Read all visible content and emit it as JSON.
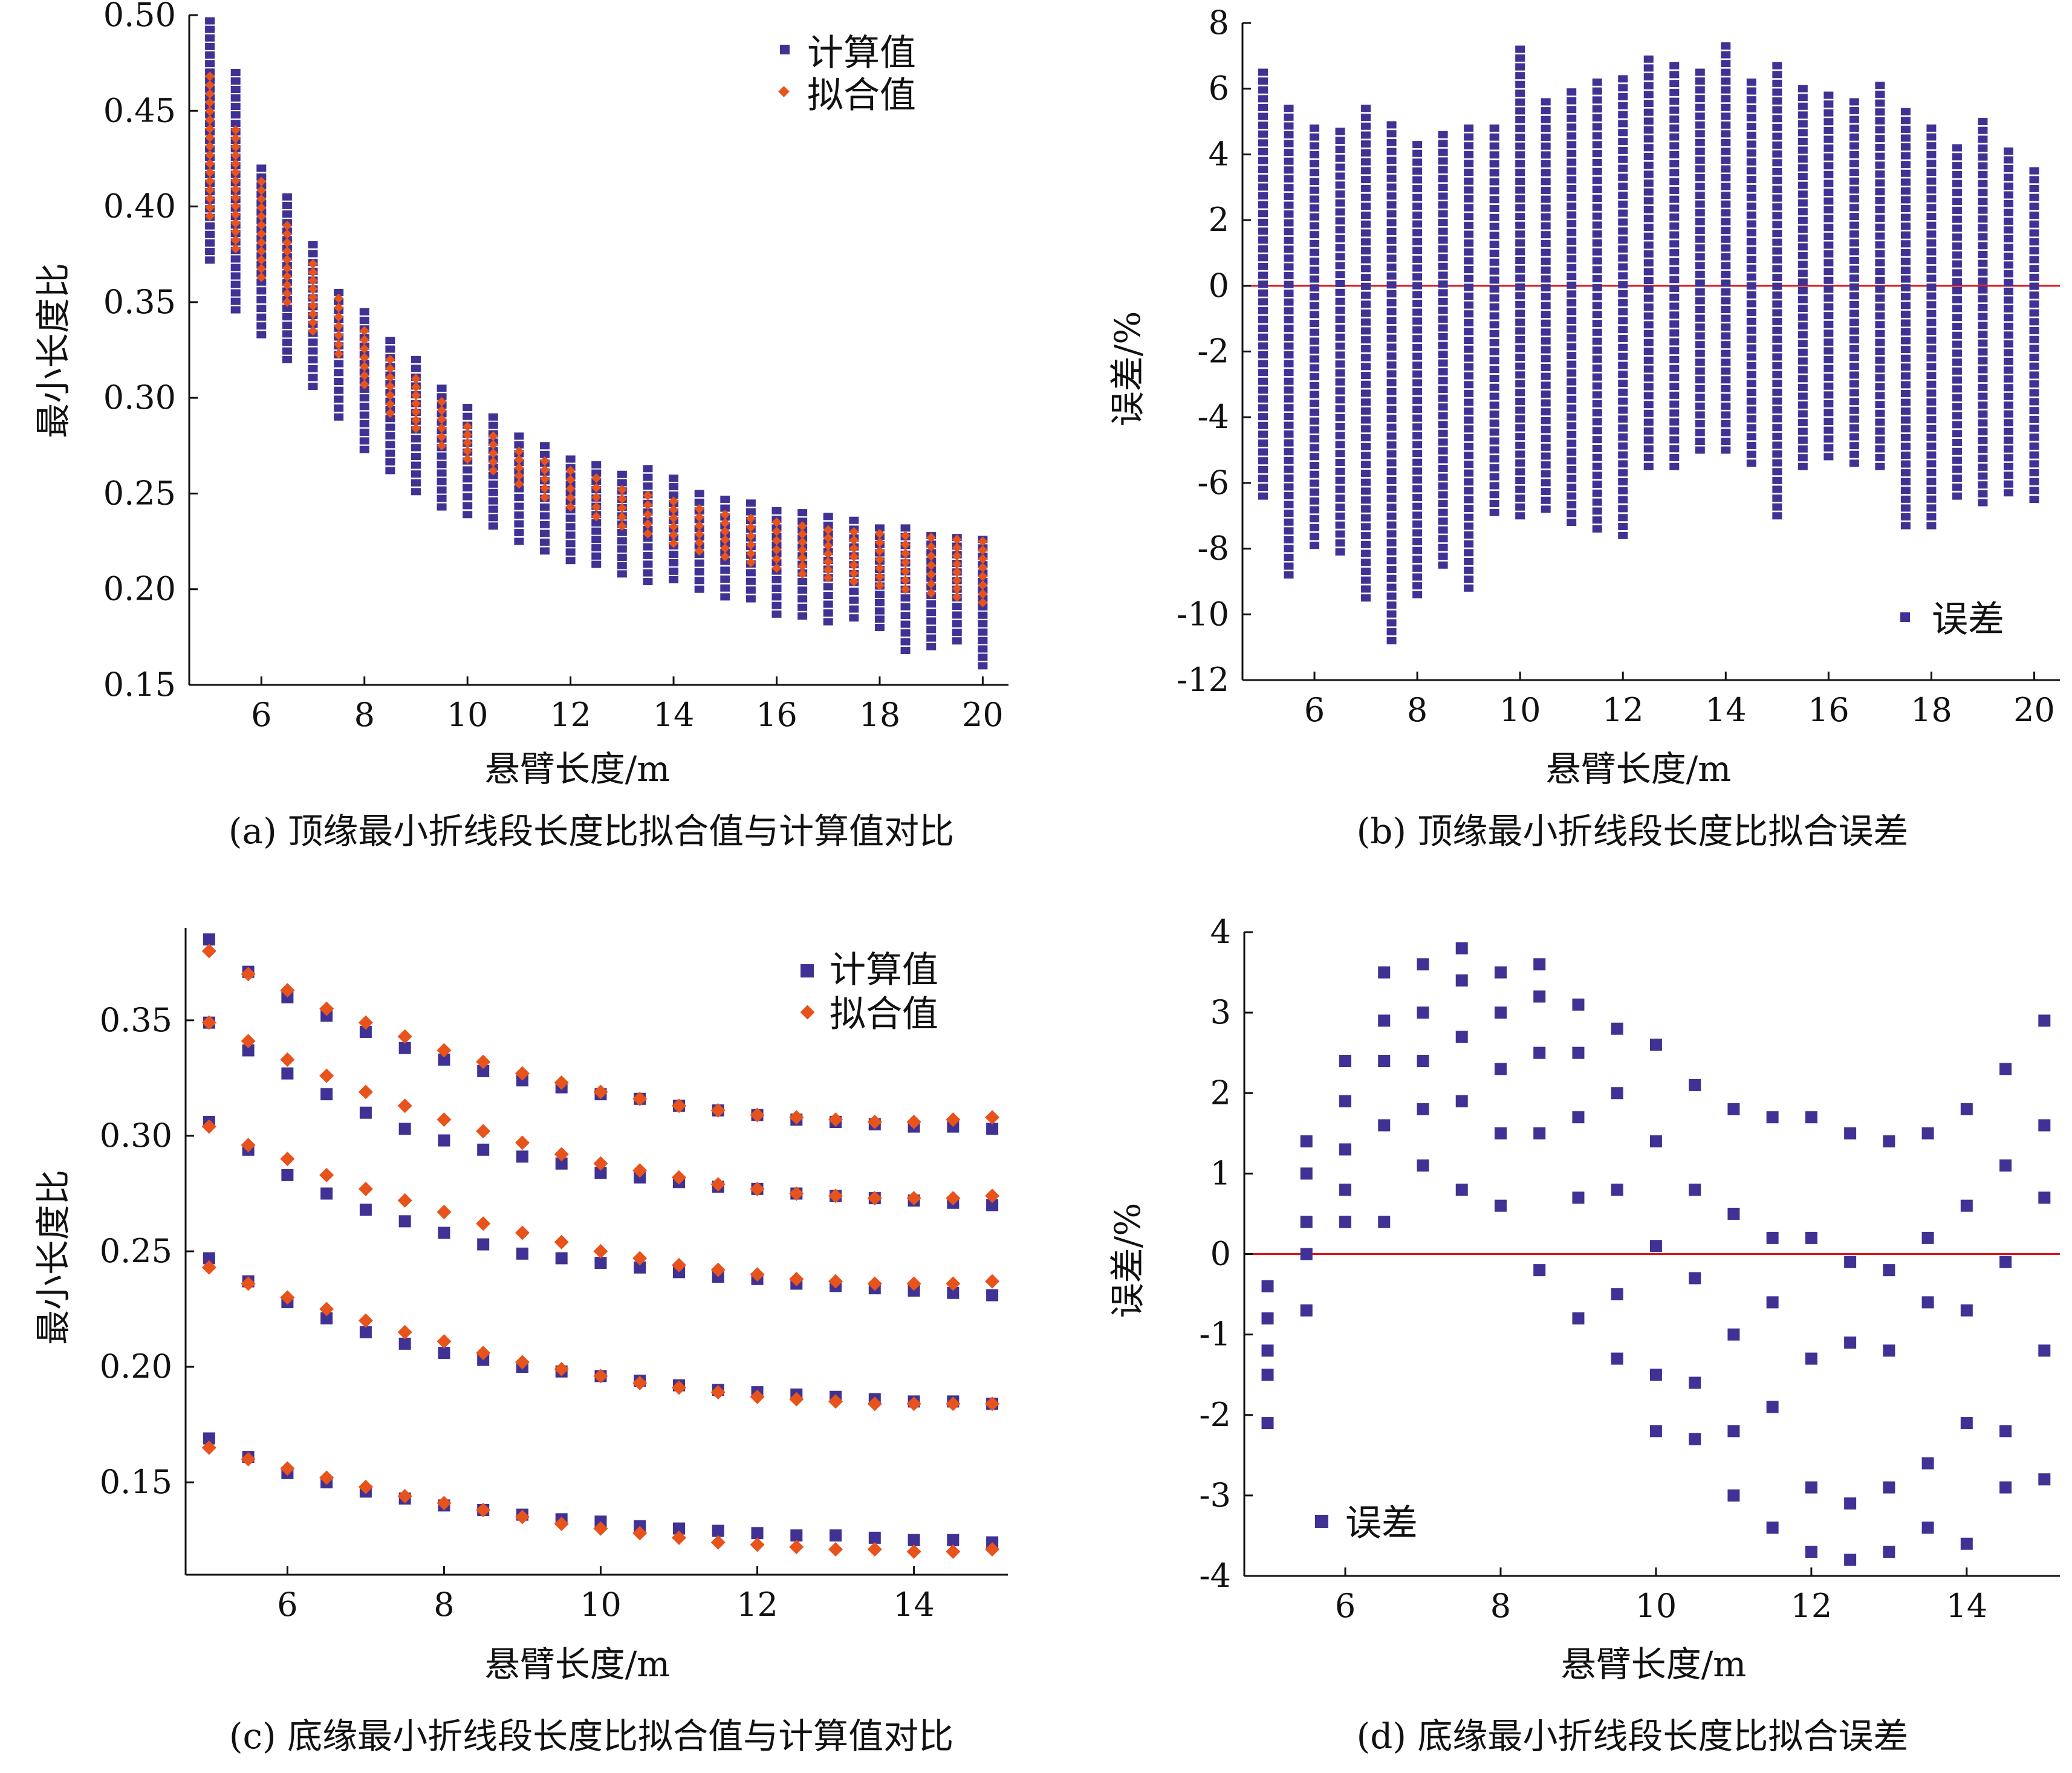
{
  "colors": {
    "computed": "#3f3294",
    "fitted": "#e8521b",
    "error": "#3f3294",
    "zero_line": "#e0141b",
    "axis": "#111111"
  },
  "chart_data": [
    {
      "id": "a",
      "type": "scatter",
      "caption": "(a) 顶缘最小折线段长度比拟合值与计算值对比",
      "xlabel": "悬臂长度/m",
      "ylabel": "最小长度比",
      "xlim": [
        4.6,
        20.5
      ],
      "ylim": [
        0.15,
        0.5
      ],
      "xticks": [
        6,
        8,
        10,
        12,
        14,
        16,
        18,
        20
      ],
      "xtick_labels": [
        "6",
        "8",
        "10",
        "12",
        "14",
        "16",
        "18",
        "20"
      ],
      "yticks": [
        0.15,
        0.2,
        0.25,
        0.3,
        0.35,
        0.4,
        0.45,
        0.5
      ],
      "ytick_labels": [
        "0.15",
        "0.20",
        "0.25",
        "0.30",
        "0.35",
        "0.40",
        "0.45",
        "0.50"
      ],
      "legend": [
        "计算值",
        "拟合值"
      ],
      "legend_position": "top-right",
      "series": [
        {
          "name": "计算值",
          "marker": "square",
          "x": [
            5,
            5.5,
            6,
            6.5,
            7,
            7.5,
            8,
            8.5,
            9,
            9.5,
            10,
            10.5,
            11,
            11.5,
            12,
            12.5,
            13,
            13.5,
            14,
            14.5,
            15,
            15.5,
            16,
            16.5,
            17,
            17.5,
            18,
            18.5,
            19,
            19.5,
            20
          ],
          "y_min": [
            0.372,
            0.346,
            0.333,
            0.32,
            0.306,
            0.29,
            0.273,
            0.262,
            0.251,
            0.243,
            0.239,
            0.233,
            0.225,
            0.22,
            0.215,
            0.213,
            0.208,
            0.204,
            0.205,
            0.2,
            0.196,
            0.195,
            0.187,
            0.186,
            0.183,
            0.185,
            0.18,
            0.168,
            0.17,
            0.173,
            0.16
          ],
          "y_max": [
            0.497,
            0.47,
            0.42,
            0.405,
            0.38,
            0.355,
            0.345,
            0.33,
            0.32,
            0.305,
            0.295,
            0.29,
            0.28,
            0.275,
            0.268,
            0.265,
            0.26,
            0.263,
            0.258,
            0.25,
            0.247,
            0.245,
            0.241,
            0.24,
            0.238,
            0.236,
            0.232,
            0.232,
            0.228,
            0.227,
            0.226
          ]
        },
        {
          "name": "拟合值",
          "marker": "diamond",
          "x": [
            5,
            5.5,
            6,
            6.5,
            7,
            7.5,
            8,
            8.5,
            9,
            9.5,
            10,
            10.5,
            11,
            11.5,
            12,
            12.5,
            13,
            13.5,
            14,
            14.5,
            15,
            15.5,
            16,
            16.5,
            17,
            17.5,
            18,
            18.5,
            19,
            19.5,
            20
          ],
          "y_min": [
            0.395,
            0.378,
            0.363,
            0.35,
            0.335,
            0.323,
            0.307,
            0.292,
            0.284,
            0.275,
            0.268,
            0.262,
            0.255,
            0.248,
            0.243,
            0.238,
            0.233,
            0.229,
            0.224,
            0.22,
            0.217,
            0.214,
            0.211,
            0.208,
            0.206,
            0.204,
            0.202,
            0.2,
            0.198,
            0.196,
            0.193
          ],
          "y_max": [
            0.468,
            0.44,
            0.413,
            0.39,
            0.37,
            0.352,
            0.335,
            0.32,
            0.31,
            0.298,
            0.285,
            0.28,
            0.272,
            0.267,
            0.262,
            0.258,
            0.252,
            0.249,
            0.246,
            0.242,
            0.239,
            0.237,
            0.235,
            0.233,
            0.231,
            0.23,
            0.229,
            0.228,
            0.227,
            0.226,
            0.225
          ]
        }
      ]
    },
    {
      "id": "b",
      "type": "scatter",
      "caption": "(b) 顶缘最小折线段长度比拟合误差",
      "xlabel": "悬臂长度/m",
      "ylabel": "误差/%",
      "xlim": [
        4.6,
        20.5
      ],
      "ylim": [
        -12,
        8
      ],
      "xticks": [
        6,
        8,
        10,
        12,
        14,
        16,
        18,
        20
      ],
      "xtick_labels": [
        "6",
        "8",
        "10",
        "12",
        "14",
        "16",
        "18",
        "20"
      ],
      "yticks": [
        -12,
        -10,
        -8,
        -6,
        -4,
        -2,
        0,
        2,
        4,
        6,
        8
      ],
      "ytick_labels": [
        "-12",
        "-10",
        "-8",
        "-6",
        "-4",
        "-2",
        "0",
        "2",
        "4",
        "6",
        "8"
      ],
      "legend": [
        "误差"
      ],
      "legend_position": "bottom-right",
      "reference_line_y": 0,
      "series": [
        {
          "name": "误差",
          "marker": "square",
          "x": [
            5,
            5.5,
            6,
            6.5,
            7,
            7.5,
            8,
            8.5,
            9,
            9.5,
            10,
            10.5,
            11,
            11.5,
            12,
            12.5,
            13,
            13.5,
            14,
            14.5,
            15,
            15.5,
            16,
            16.5,
            17,
            17.5,
            18,
            18.5,
            19,
            19.5,
            20
          ],
          "y_min": [
            -6.4,
            -8.8,
            -7.9,
            -8.1,
            -9.5,
            -10.8,
            -9.4,
            -8.5,
            -9.2,
            -6.9,
            -7.0,
            -6.8,
            -7.2,
            -7.4,
            -7.6,
            -5.5,
            -5.5,
            -5.0,
            -5.0,
            -5.4,
            -7.0,
            -5.5,
            -5.2,
            -5.4,
            -5.5,
            -7.3,
            -7.3,
            -6.4,
            -6.6,
            -6.3,
            -6.5
          ],
          "y_max": [
            6.5,
            5.4,
            4.8,
            4.7,
            5.4,
            4.9,
            4.3,
            4.6,
            4.8,
            4.8,
            7.2,
            5.6,
            5.9,
            6.2,
            6.3,
            6.9,
            6.7,
            6.5,
            7.3,
            6.2,
            6.7,
            6.0,
            5.8,
            5.6,
            6.1,
            5.3,
            4.8,
            4.2,
            5.0,
            4.1,
            3.5
          ]
        }
      ]
    },
    {
      "id": "c",
      "type": "scatter",
      "caption": "(c) 底缘最小折线段长度比拟合值与计算值对比",
      "xlabel": "悬臂长度/m",
      "ylabel": "最小长度比",
      "xlim": [
        4.7,
        15.2
      ],
      "ylim": [
        0.11,
        0.39
      ],
      "xticks": [
        6,
        8,
        10,
        12,
        14
      ],
      "xtick_labels": [
        "6",
        "8",
        "10",
        "12",
        "14"
      ],
      "yticks": [
        0.15,
        0.2,
        0.25,
        0.3,
        0.35
      ],
      "ytick_labels": [
        "0.15",
        "0.20",
        "0.25",
        "0.30",
        "0.35"
      ],
      "legend": [
        "计算值",
        "拟合值"
      ],
      "legend_position": "top-right",
      "x": [
        5,
        5.5,
        6,
        6.5,
        7,
        7.5,
        8,
        8.5,
        9,
        9.5,
        10,
        10.5,
        11,
        11.5,
        12,
        12.5,
        13,
        13.5,
        14,
        14.5,
        15
      ],
      "series": [
        {
          "name": "计算值",
          "marker": "square",
          "group": 1,
          "values": [
            0.385,
            0.371,
            0.36,
            0.352,
            0.345,
            0.338,
            0.333,
            0.328,
            0.324,
            0.321,
            0.318,
            0.316,
            0.313,
            0.311,
            0.309,
            0.307,
            0.306,
            0.305,
            0.304,
            0.304,
            0.303
          ]
        },
        {
          "name": "计算值",
          "marker": "square",
          "group": 2,
          "values": [
            0.349,
            0.337,
            0.327,
            0.318,
            0.31,
            0.303,
            0.298,
            0.294,
            0.291,
            0.288,
            0.284,
            0.282,
            0.28,
            0.278,
            0.277,
            0.275,
            0.274,
            0.273,
            0.272,
            0.271,
            0.27
          ]
        },
        {
          "name": "计算值",
          "marker": "square",
          "group": 3,
          "values": [
            0.306,
            0.294,
            0.283,
            0.275,
            0.268,
            0.263,
            0.258,
            0.253,
            0.249,
            0.247,
            0.245,
            0.243,
            0.241,
            0.239,
            0.238,
            0.236,
            0.235,
            0.234,
            0.233,
            0.232,
            0.231
          ]
        },
        {
          "name": "计算值",
          "marker": "square",
          "group": 4,
          "values": [
            0.247,
            0.237,
            0.228,
            0.221,
            0.215,
            0.21,
            0.206,
            0.203,
            0.2,
            0.198,
            0.196,
            0.194,
            0.192,
            0.19,
            0.189,
            0.188,
            0.187,
            0.186,
            0.185,
            0.185,
            0.184
          ]
        },
        {
          "name": "计算值",
          "marker": "square",
          "group": 5,
          "values": [
            0.169,
            0.161,
            0.154,
            0.15,
            0.146,
            0.143,
            0.14,
            0.138,
            0.136,
            0.134,
            0.133,
            0.131,
            0.13,
            0.129,
            0.128,
            0.127,
            0.127,
            0.126,
            0.125,
            0.125,
            0.124
          ]
        },
        {
          "name": "拟合值",
          "marker": "diamond",
          "group": 1,
          "values": [
            0.38,
            0.37,
            0.363,
            0.355,
            0.349,
            0.343,
            0.337,
            0.332,
            0.327,
            0.323,
            0.319,
            0.316,
            0.313,
            0.311,
            0.309,
            0.308,
            0.307,
            0.306,
            0.306,
            0.307,
            0.308
          ]
        },
        {
          "name": "拟合值",
          "marker": "diamond",
          "group": 2,
          "values": [
            0.349,
            0.341,
            0.333,
            0.326,
            0.319,
            0.313,
            0.307,
            0.302,
            0.297,
            0.292,
            0.288,
            0.285,
            0.282,
            0.279,
            0.277,
            0.275,
            0.274,
            0.273,
            0.273,
            0.273,
            0.274
          ]
        },
        {
          "name": "拟合值",
          "marker": "diamond",
          "group": 3,
          "values": [
            0.304,
            0.296,
            0.29,
            0.283,
            0.277,
            0.272,
            0.267,
            0.262,
            0.258,
            0.254,
            0.25,
            0.247,
            0.244,
            0.242,
            0.24,
            0.238,
            0.237,
            0.236,
            0.236,
            0.236,
            0.237
          ]
        },
        {
          "name": "拟合值",
          "marker": "diamond",
          "group": 4,
          "values": [
            0.243,
            0.236,
            0.23,
            0.225,
            0.22,
            0.215,
            0.211,
            0.206,
            0.202,
            0.199,
            0.196,
            0.193,
            0.191,
            0.189,
            0.187,
            0.186,
            0.185,
            0.184,
            0.184,
            0.184,
            0.184
          ]
        },
        {
          "name": "拟合值",
          "marker": "diamond",
          "group": 5,
          "values": [
            0.165,
            0.16,
            0.156,
            0.152,
            0.148,
            0.144,
            0.141,
            0.138,
            0.135,
            0.132,
            0.13,
            0.128,
            0.126,
            0.124,
            0.123,
            0.122,
            0.121,
            0.121,
            0.12,
            0.12,
            0.121
          ]
        }
      ]
    },
    {
      "id": "d",
      "type": "scatter",
      "caption": "(d) 底缘最小折线段长度比拟合误差",
      "xlabel": "悬臂长度/m",
      "ylabel": "误差/%",
      "xlim": [
        4.7,
        15.2
      ],
      "ylim": [
        -4,
        4
      ],
      "xticks": [
        6,
        8,
        10,
        12,
        14
      ],
      "xtick_labels": [
        "6",
        "8",
        "10",
        "12",
        "14"
      ],
      "yticks": [
        -4,
        -3,
        -2,
        -1,
        0,
        1,
        2,
        3,
        4
      ],
      "ytick_labels": [
        "-4",
        "-3",
        "-2",
        "-1",
        "0",
        "1",
        "2",
        "3",
        "4"
      ],
      "legend": [
        "误差"
      ],
      "legend_position": "bottom-left",
      "reference_line_y": 0,
      "series": [
        {
          "name": "误差",
          "marker": "square",
          "x": [
            5,
            5,
            5,
            5,
            5,
            5.5,
            5.5,
            5.5,
            5.5,
            5.5,
            6,
            6,
            6,
            6,
            6,
            6.5,
            6.5,
            6.5,
            6.5,
            6.5,
            7,
            7,
            7,
            7,
            7,
            7.5,
            7.5,
            7.5,
            7.5,
            7.5,
            8,
            8,
            8,
            8,
            8,
            8.5,
            8.5,
            8.5,
            8.5,
            8.5,
            9,
            9,
            9,
            9,
            9,
            9.5,
            9.5,
            9.5,
            9.5,
            9.5,
            10,
            10,
            10,
            10,
            10,
            10.5,
            10.5,
            10.5,
            10.5,
            10.5,
            11,
            11,
            11,
            11,
            11,
            11.5,
            11.5,
            11.5,
            11.5,
            11.5,
            12,
            12,
            12,
            12,
            12,
            12.5,
            12.5,
            12.5,
            12.5,
            12.5,
            13,
            13,
            13,
            13,
            13,
            13.5,
            13.5,
            13.5,
            13.5,
            13.5,
            14,
            14,
            14,
            14,
            14,
            14.5,
            14.5,
            14.5,
            14.5,
            14.5,
            15,
            15,
            15,
            15,
            15
          ],
          "y": [
            -0.4,
            -0.8,
            -1.2,
            -1.5,
            -2.1,
            1.4,
            1.0,
            0.4,
            0.0,
            -0.7,
            2.4,
            1.9,
            1.3,
            0.8,
            0.4,
            3.5,
            2.9,
            2.4,
            1.6,
            0.4,
            3.6,
            3.0,
            2.4,
            1.8,
            1.1,
            3.8,
            3.4,
            2.7,
            1.9,
            0.8,
            3.5,
            3.0,
            2.3,
            1.5,
            0.6,
            3.6,
            3.2,
            2.5,
            1.5,
            -0.2,
            3.1,
            2.5,
            1.7,
            0.7,
            -0.8,
            2.8,
            2.0,
            0.8,
            -0.5,
            -1.3,
            2.6,
            1.4,
            0.1,
            -1.5,
            -2.2,
            2.1,
            0.8,
            -0.3,
            -1.6,
            -2.3,
            1.8,
            0.5,
            -1.0,
            -2.2,
            -3.0,
            1.7,
            0.2,
            -0.6,
            -1.9,
            -3.4,
            1.7,
            0.2,
            -1.3,
            -2.9,
            -3.7,
            1.5,
            -0.1,
            -1.1,
            -3.1,
            -3.8,
            1.4,
            -0.2,
            -1.2,
            -2.9,
            -3.7,
            1.5,
            0.2,
            -0.6,
            -2.6,
            -3.4,
            1.8,
            0.6,
            -0.7,
            -2.1,
            -3.6,
            2.3,
            1.1,
            -0.1,
            -2.2,
            -2.9,
            2.9,
            1.6,
            0.7,
            -1.2,
            -2.8
          ]
        }
      ]
    }
  ]
}
